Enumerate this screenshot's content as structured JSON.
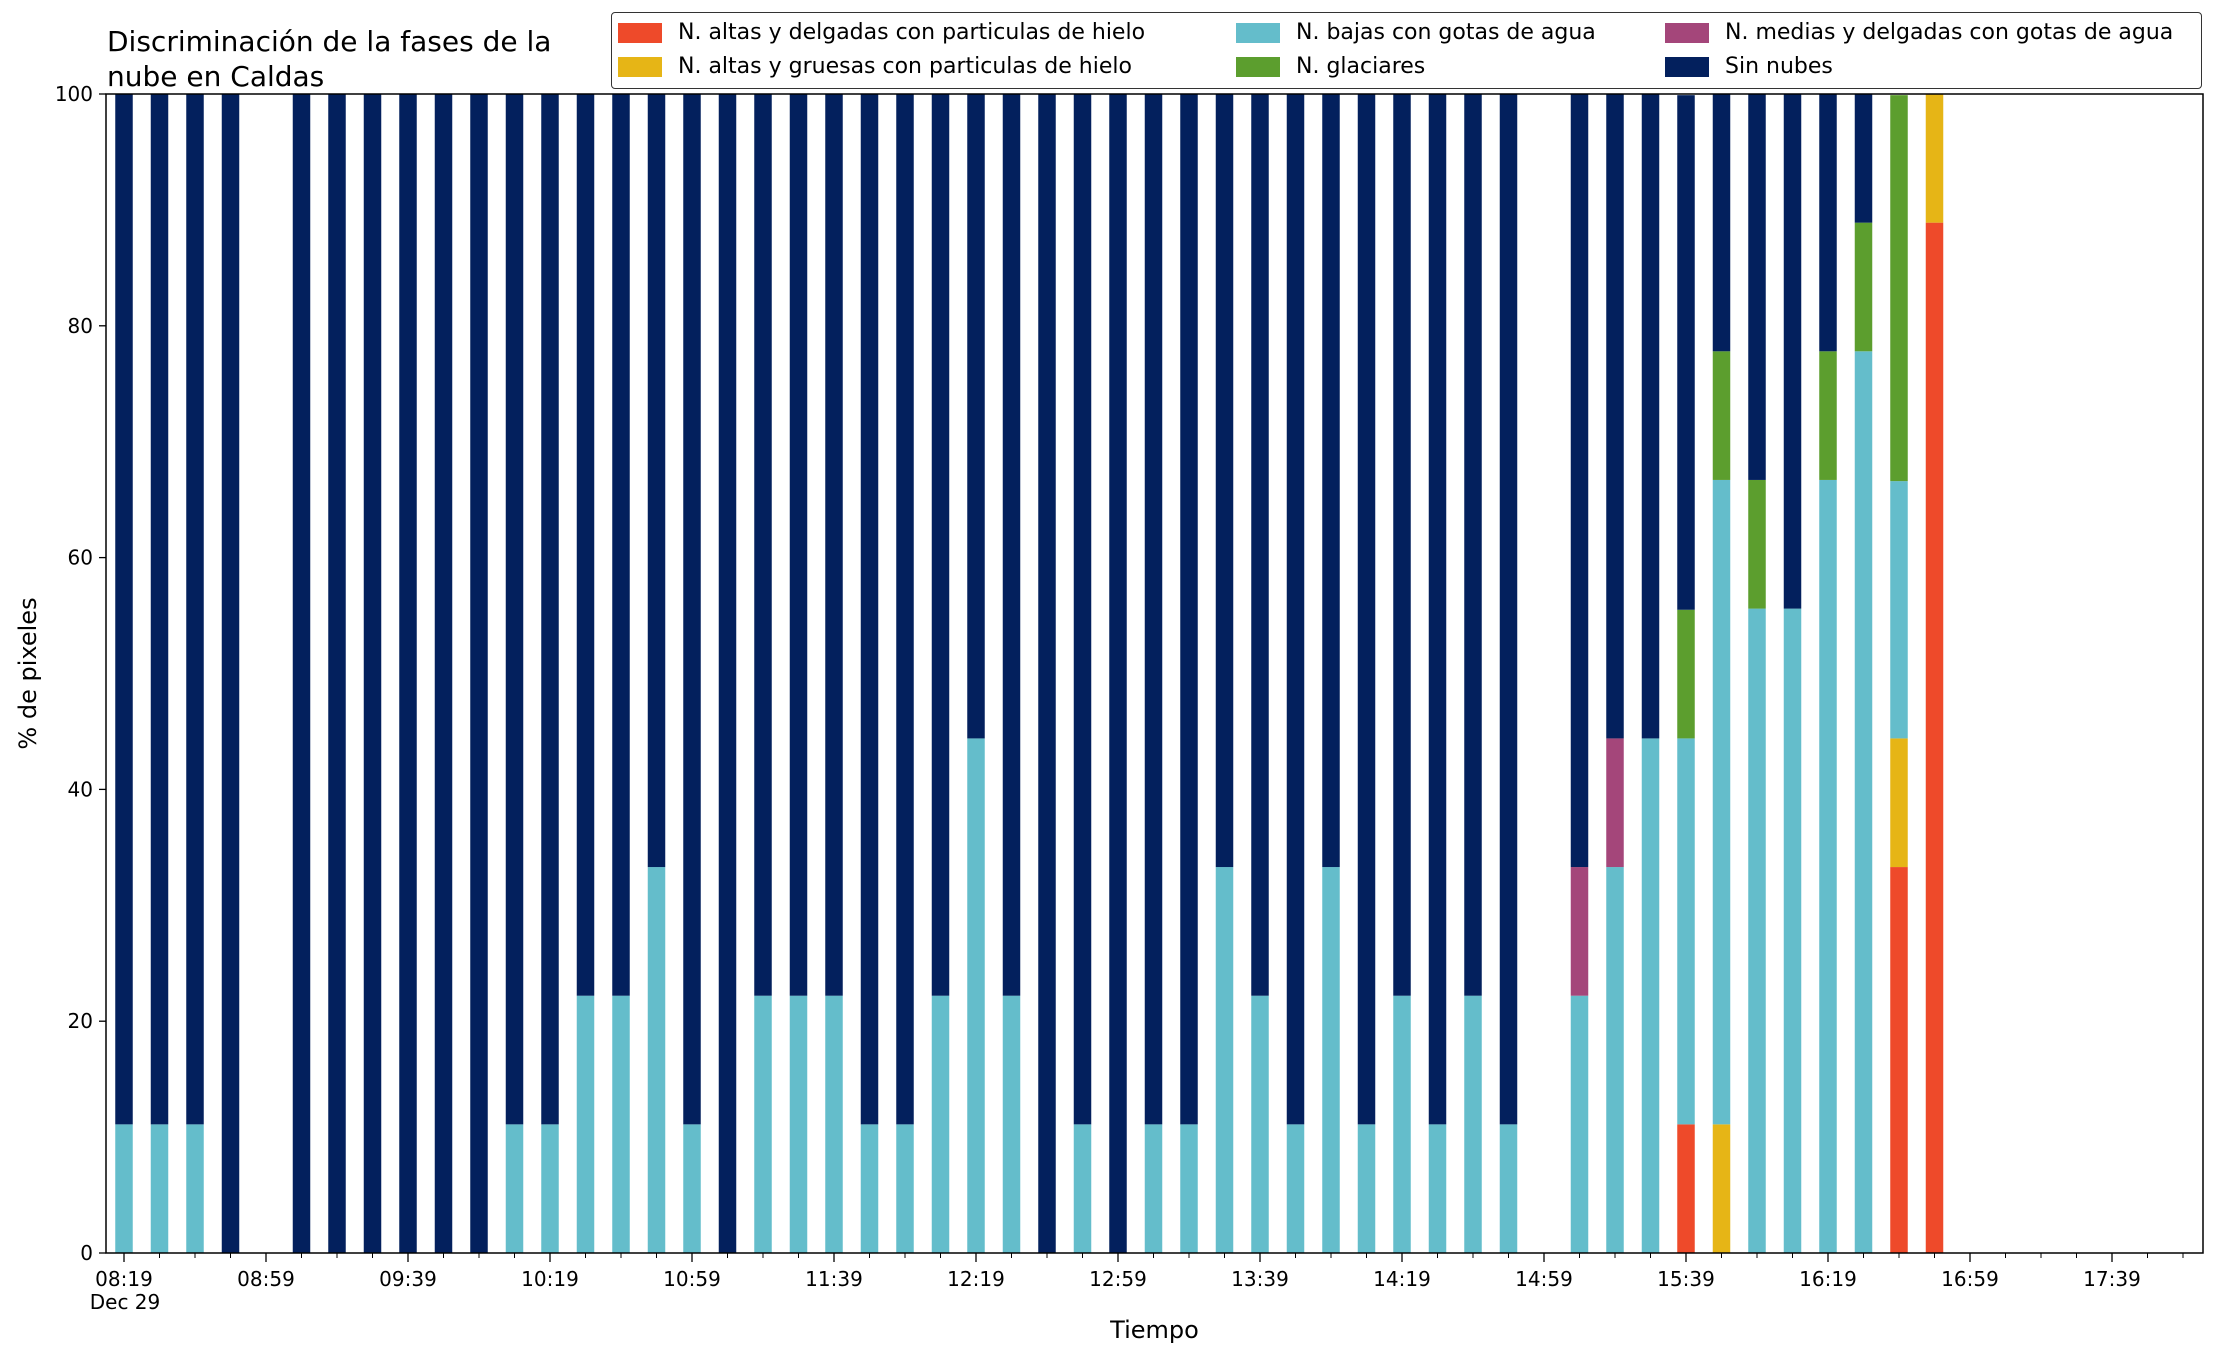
{
  "chart_data": {
    "type": "bar",
    "stacked": true,
    "title": "Discriminación de la fases de la nube en Caldas",
    "title_lines": [
      "Discriminación de la fases de la",
      "nube en Caldas"
    ],
    "xlabel": "Tiempo",
    "ylabel": "% de pixeles",
    "ylim": [
      0,
      100
    ],
    "yticks": [
      0,
      20,
      40,
      60,
      80,
      100
    ],
    "xtick_labels": [
      "08:19",
      "08:59",
      "09:39",
      "10:19",
      "10:59",
      "11:39",
      "12:19",
      "12:59",
      "13:39",
      "14:19",
      "14:59",
      "15:39",
      "16:19",
      "16:59",
      "17:39"
    ],
    "xdate_label": "Dec 29",
    "x_interval_minutes": 10,
    "x_range": [
      "08:19",
      "18:10"
    ],
    "categories": [
      "08:19",
      "08:29",
      "08:39",
      "08:49",
      "08:59",
      "09:09",
      "09:19",
      "09:29",
      "09:39",
      "09:49",
      "09:59",
      "10:09",
      "10:19",
      "10:29",
      "10:39",
      "10:49",
      "10:59",
      "11:09",
      "11:19",
      "11:29",
      "11:39",
      "11:49",
      "11:59",
      "12:09",
      "12:19",
      "12:29",
      "12:39",
      "12:49",
      "12:59",
      "13:09",
      "13:19",
      "13:29",
      "13:39",
      "13:49",
      "13:59",
      "14:09",
      "14:19",
      "14:29",
      "14:39",
      "14:49",
      "14:59",
      "15:09",
      "15:19",
      "15:29",
      "15:39",
      "15:49",
      "15:59",
      "16:09",
      "16:19",
      "16:29",
      "16:39",
      "16:49",
      "16:59",
      "17:09",
      "17:19",
      "17:29",
      "17:39",
      "17:49",
      "17:59",
      "18:09"
    ],
    "series": [
      {
        "name": "N. altas y delgadas con particulas de hielo",
        "color": "#ee4a2a",
        "values": [
          0,
          0,
          0,
          0,
          null,
          0,
          0,
          0,
          0,
          0,
          0,
          0,
          0,
          0,
          0,
          0,
          0,
          0,
          0,
          0,
          0,
          0,
          0,
          0,
          0,
          0,
          0,
          0,
          0,
          0,
          0,
          0,
          0,
          0,
          0,
          0,
          0,
          0,
          0,
          0,
          null,
          0,
          0,
          0,
          11.1,
          0,
          0,
          0,
          0,
          0,
          33.3,
          88.9,
          null,
          null,
          null,
          null,
          null,
          null,
          null,
          null
        ]
      },
      {
        "name": "N. altas y gruesas con particulas de hielo",
        "color": "#e6b516",
        "values": [
          0,
          0,
          0,
          0,
          null,
          0,
          0,
          0,
          0,
          0,
          0,
          0,
          0,
          0,
          0,
          0,
          0,
          0,
          0,
          0,
          0,
          0,
          0,
          0,
          0,
          0,
          0,
          0,
          0,
          0,
          0,
          0,
          0,
          0,
          0,
          0,
          0,
          0,
          0,
          0,
          null,
          0,
          0,
          0,
          0,
          11.1,
          0,
          0,
          0,
          0,
          11.1,
          11.1,
          null,
          null,
          null,
          null,
          null,
          null,
          null,
          null
        ]
      },
      {
        "name": "N. bajas con gotas de agua",
        "color": "#64bdcb",
        "values": [
          11.1,
          11.1,
          11.1,
          0,
          null,
          0,
          0,
          0,
          0,
          0,
          0,
          11.1,
          11.1,
          22.2,
          22.2,
          33.3,
          11.1,
          0,
          22.2,
          22.2,
          22.2,
          11.1,
          11.1,
          22.2,
          44.4,
          22.2,
          0,
          11.1,
          0,
          11.1,
          11.1,
          33.3,
          22.2,
          11.1,
          33.3,
          11.1,
          22.2,
          11.1,
          22.2,
          11.1,
          null,
          22.2,
          33.3,
          44.4,
          33.3,
          55.6,
          55.6,
          55.6,
          66.7,
          77.8,
          22.2,
          0,
          null,
          null,
          null,
          null,
          null,
          null,
          null,
          null
        ]
      },
      {
        "name": "N. glaciares",
        "color": "#5c9e2e",
        "values": [
          0,
          0,
          0,
          0,
          null,
          0,
          0,
          0,
          0,
          0,
          0,
          0,
          0,
          0,
          0,
          0,
          0,
          0,
          0,
          0,
          0,
          0,
          0,
          0,
          0,
          0,
          0,
          0,
          0,
          0,
          0,
          0,
          0,
          0,
          0,
          0,
          0,
          0,
          0,
          0,
          null,
          0,
          0,
          0,
          11.1,
          11.1,
          11.1,
          0,
          11.1,
          11.1,
          33.3,
          0,
          null,
          null,
          null,
          null,
          null,
          null,
          null,
          null
        ]
      },
      {
        "name": "N. medias y delgadas con gotas de agua",
        "color": "#a4467a",
        "values": [
          0,
          0,
          0,
          0,
          null,
          0,
          0,
          0,
          0,
          0,
          0,
          0,
          0,
          0,
          0,
          0,
          0,
          0,
          0,
          0,
          0,
          0,
          0,
          0,
          0,
          0,
          0,
          0,
          0,
          0,
          0,
          0,
          0,
          0,
          0,
          0,
          0,
          0,
          0,
          0,
          null,
          11.1,
          11.1,
          0,
          0,
          0,
          0,
          0,
          0,
          0,
          0,
          0,
          null,
          null,
          null,
          null,
          null,
          null,
          null,
          null
        ]
      },
      {
        "name": "Sin nubes",
        "color": "#03205d",
        "values": [
          88.9,
          88.9,
          88.9,
          100,
          null,
          100,
          100,
          100,
          100,
          100,
          100,
          88.9,
          88.9,
          77.8,
          77.8,
          66.7,
          88.9,
          100,
          77.8,
          77.8,
          77.8,
          88.9,
          88.9,
          77.8,
          55.6,
          77.8,
          100,
          88.9,
          100,
          88.9,
          88.9,
          66.7,
          77.8,
          88.9,
          66.7,
          88.9,
          77.8,
          88.9,
          77.8,
          88.9,
          null,
          66.7,
          55.6,
          55.6,
          44.4,
          22.2,
          33.3,
          44.4,
          22.2,
          11.1,
          0,
          0,
          null,
          null,
          null,
          null,
          null,
          null,
          null,
          null
        ]
      }
    ],
    "legend_position": "upper-right",
    "grid": false
  }
}
